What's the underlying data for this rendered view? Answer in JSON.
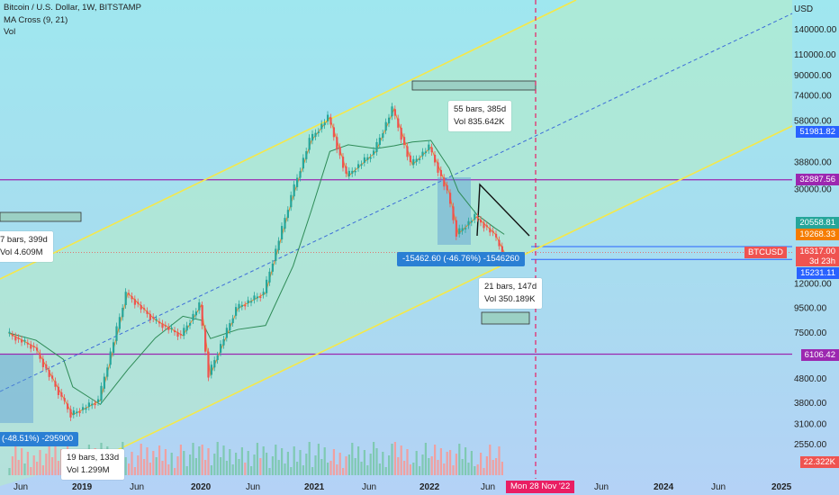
{
  "header": {
    "title": "Bitcoin / U.S. Dollar, 1W, BITSTAMP",
    "indicator": "MA Cross (9, 21)",
    "volume_label": "Vol"
  },
  "axis": {
    "currency": "USD",
    "ticks": [
      "140000.00",
      "110000.00",
      "90000.00",
      "74000.00",
      "58000.00",
      "38800.00",
      "30000.00",
      "12000.00",
      "9500.00",
      "7500.00",
      "4800.00",
      "3800.00",
      "3100.00",
      "2550.00"
    ],
    "x_labels": [
      "Jun",
      "2019",
      "Jun",
      "2020",
      "Jun",
      "2021",
      "Jun",
      "2022",
      "Jun",
      "Jun",
      "2024",
      "Jun",
      "2025"
    ]
  },
  "badges": {
    "b1": "51981.82",
    "b2": "32887.56",
    "b3": "20558.81",
    "b4": "19268.33",
    "btc_label": "BTCUSD",
    "btc_price": "16317.00",
    "btc_countdown": "3d 23h",
    "b6": "15231.11",
    "b7": "6106.42",
    "vol_badge": "22.322K"
  },
  "annotations": {
    "top": {
      "bars": "55 bars, 385d",
      "vol": "Vol 835.642K"
    },
    "mid": {
      "bars": "21 bars, 147d",
      "vol": "Vol 350.189K"
    },
    "bottom": {
      "bars": "19 bars, 133d",
      "vol": "Vol 1.299M"
    },
    "left": {
      "bars": "7 bars, 399d",
      "vol": "Vol 4.609M"
    },
    "measure_right": "-15462.60 (-46.76%) -1546260",
    "measure_left": "(-48.51%) -295900"
  },
  "cursor_date": "Mon 28 Nov '22",
  "chart_data": {
    "type": "candlestick",
    "symbol": "BTCUSD",
    "interval": "1W",
    "y_scale": "log",
    "current_price": 16317.0,
    "horizontal_levels": [
      51981.82,
      32887.56,
      20558.81,
      19268.33,
      15231.11,
      6106.42
    ],
    "price_path": [
      [
        "2018-05",
        7500
      ],
      [
        "2018-08",
        6500
      ],
      [
        "2018-11",
        4000
      ],
      [
        "2018-12",
        3400
      ],
      [
        "2019-03",
        3900
      ],
      [
        "2019-06",
        11000
      ],
      [
        "2019-09",
        8500
      ],
      [
        "2019-12",
        7300
      ],
      [
        "2020-02",
        9800
      ],
      [
        "2020-03",
        5000
      ],
      [
        "2020-06",
        9500
      ],
      [
        "2020-09",
        11000
      ],
      [
        "2020-12",
        28000
      ],
      [
        "2021-02",
        48000
      ],
      [
        "2021-04",
        60000
      ],
      [
        "2021-06",
        34000
      ],
      [
        "2021-09",
        43000
      ],
      [
        "2021-11",
        65000
      ],
      [
        "2022-01",
        38000
      ],
      [
        "2022-03",
        45000
      ],
      [
        "2022-05",
        29000
      ],
      [
        "2022-06",
        19500
      ],
      [
        "2022-08",
        23000
      ],
      [
        "2022-10",
        19500
      ],
      [
        "2022-11",
        16317
      ]
    ]
  }
}
